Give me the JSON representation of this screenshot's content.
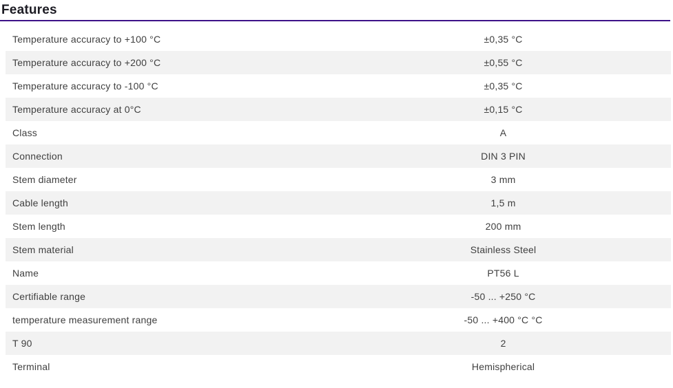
{
  "page": {
    "title": "Features"
  },
  "colors": {
    "heading_text": "#1d1c24",
    "underline_accent": "#3c1188",
    "row_alt_bg": "#f2f2f2",
    "body_text": "#3f3f3f"
  },
  "table": {
    "rows": [
      {
        "label": "Temperature accuracy to +100 °C",
        "value": "±0,35 °C"
      },
      {
        "label": "Temperature accuracy to +200 °C",
        "value": "±0,55 °C"
      },
      {
        "label": "Temperature accuracy to -100 °C",
        "value": "±0,35 °C"
      },
      {
        "label": "Temperature accuracy at 0°C",
        "value": "±0,15 °C"
      },
      {
        "label": "Class",
        "value": "A"
      },
      {
        "label": "Connection",
        "value": "DIN 3 PIN"
      },
      {
        "label": "Stem diameter",
        "value": "3 mm"
      },
      {
        "label": "Cable length",
        "value": "1,5 m"
      },
      {
        "label": "Stem length",
        "value": "200 mm"
      },
      {
        "label": "Stem material",
        "value": "Stainless Steel"
      },
      {
        "label": "Name",
        "value": "PT56 L"
      },
      {
        "label": "Certifiable range",
        "value": "-50 ... +250 °C"
      },
      {
        "label": "temperature measurement range",
        "value": "-50 ... +400 °C °C"
      },
      {
        "label": "T 90",
        "value": "2"
      },
      {
        "label": "Terminal",
        "value": "Hemispherical"
      }
    ]
  }
}
